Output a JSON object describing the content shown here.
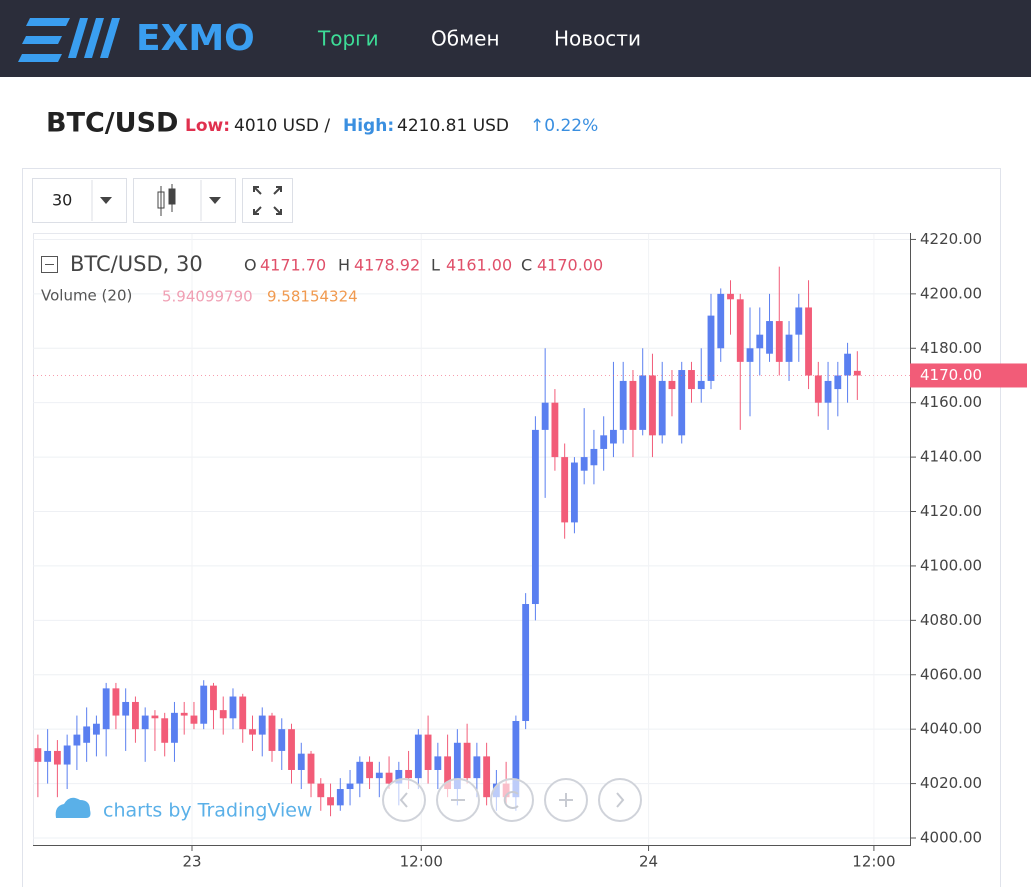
{
  "header": {
    "logo": "EXMO",
    "nav": [
      "Торги",
      "Обмен",
      "Новости"
    ]
  },
  "ticker": {
    "pair": "BTC/USD",
    "low_label": "Low:",
    "low": "4010 USD /",
    "high_label": "High:",
    "high": "4210.81 USD",
    "change": "↑0.22%"
  },
  "toolbar": {
    "interval": "30"
  },
  "chart_data": {
    "type": "candlestick",
    "legend": {
      "symbol": "BTC/USD, 30",
      "o_label": "O",
      "o": "4171.70",
      "h_label": "H",
      "h": "4178.92",
      "l_label": "L",
      "l": "4161.00",
      "c_label": "C",
      "c": "4170.00",
      "volume_label": "Volume (20)",
      "volume_1": "5.94099790",
      "volume_2": "9.58154324"
    },
    "watermark": "charts by TradingView",
    "up_color": "#5a7ff0",
    "down_color": "#f25c78",
    "last_price": {
      "value": 4170,
      "label": "4170.00"
    },
    "xlim": [
      -0.5,
      89.4
    ],
    "ylim": [
      4000,
      4222
    ],
    "xticks": [
      {
        "value": 15.8,
        "label": "23"
      },
      {
        "value": 39.3,
        "label": "12:00"
      },
      {
        "value": 62.6,
        "label": "24"
      },
      {
        "value": 85.7,
        "label": "12:00"
      }
    ],
    "yticks": [
      {
        "value": 4000,
        "label": "4000.00"
      },
      {
        "value": 4020,
        "label": "4020.00"
      },
      {
        "value": 4040,
        "label": "4040.00"
      },
      {
        "value": 4060,
        "label": "4060.00"
      },
      {
        "value": 4080,
        "label": "4080.00"
      },
      {
        "value": 4100,
        "label": "4100.00"
      },
      {
        "value": 4120,
        "label": "4120.00"
      },
      {
        "value": 4140,
        "label": "4140.00"
      },
      {
        "value": 4160,
        "label": "4160.00"
      },
      {
        "value": 4180,
        "label": "4180.00"
      },
      {
        "value": 4200,
        "label": "4200.00"
      },
      {
        "value": 4220,
        "label": "4220.00"
      }
    ],
    "candles": [
      [
        4033,
        4038,
        4015,
        4028
      ],
      [
        4028,
        4040,
        4020,
        4032
      ],
      [
        4032,
        4036,
        4015,
        4027
      ],
      [
        4027,
        4038,
        4018,
        4034
      ],
      [
        4034,
        4045,
        4025,
        4038
      ],
      [
        4035,
        4048,
        4028,
        4041
      ],
      [
        4038,
        4045,
        4030,
        4042
      ],
      [
        4040,
        4057,
        4030,
        4055
      ],
      [
        4055,
        4057,
        4040,
        4045
      ],
      [
        4045,
        4055,
        4032,
        4050
      ],
      [
        4050,
        4052,
        4035,
        4040
      ],
      [
        4040,
        4048,
        4028,
        4045
      ],
      [
        4045,
        4047,
        4032,
        4044
      ],
      [
        4044,
        4046,
        4030,
        4035
      ],
      [
        4035,
        4050,
        4028,
        4046
      ],
      [
        4046,
        4050,
        4038,
        4045
      ],
      [
        4045,
        4050,
        4040,
        4042
      ],
      [
        4042,
        4058,
        4040,
        4056
      ],
      [
        4056,
        4057,
        4040,
        4047
      ],
      [
        4047,
        4052,
        4038,
        4044
      ],
      [
        4044,
        4055,
        4040,
        4052
      ],
      [
        4052,
        4053,
        4035,
        4040
      ],
      [
        4040,
        4045,
        4032,
        4038
      ],
      [
        4038,
        4048,
        4030,
        4045
      ],
      [
        4045,
        4046,
        4028,
        4032
      ],
      [
        4032,
        4044,
        4025,
        4040
      ],
      [
        4040,
        4042,
        4020,
        4025
      ],
      [
        4025,
        4035,
        4018,
        4031
      ],
      [
        4031,
        4032,
        4015,
        4020
      ],
      [
        4020,
        4022,
        4010,
        4015
      ],
      [
        4015,
        4020,
        4008,
        4012
      ],
      [
        4012,
        4022,
        4010,
        4018
      ],
      [
        4018,
        4025,
        4012,
        4020
      ],
      [
        4020,
        4030,
        4015,
        4028
      ],
      [
        4028,
        4030,
        4018,
        4022
      ],
      [
        4022,
        4028,
        4015,
        4024
      ],
      [
        4024,
        4030,
        4018,
        4020
      ],
      [
        4020,
        4028,
        4012,
        4025
      ],
      [
        4025,
        4032,
        4018,
        4022
      ],
      [
        4022,
        4040,
        4018,
        4038
      ],
      [
        4038,
        4045,
        4020,
        4025
      ],
      [
        4025,
        4035,
        4018,
        4030
      ],
      [
        4030,
        4038,
        4015,
        4018
      ],
      [
        4018,
        4040,
        4012,
        4035
      ],
      [
        4035,
        4042,
        4020,
        4022
      ],
      [
        4022,
        4035,
        4015,
        4030
      ],
      [
        4030,
        4035,
        4012,
        4015
      ],
      [
        4015,
        4025,
        4010,
        4020
      ],
      [
        4020,
        4028,
        4012,
        4015
      ],
      [
        4015,
        4045,
        4010,
        4043
      ],
      [
        4043,
        4090,
        4040,
        4086
      ],
      [
        4086,
        4155,
        4080,
        4150
      ],
      [
        4150,
        4180,
        4125,
        4160
      ],
      [
        4160,
        4165,
        4135,
        4140
      ],
      [
        4140,
        4145,
        4110,
        4116
      ],
      [
        4116,
        4140,
        4112,
        4138
      ],
      [
        4135,
        4158,
        4130,
        4140
      ],
      [
        4137,
        4150,
        4130,
        4143
      ],
      [
        4143,
        4155,
        4135,
        4148
      ],
      [
        4145,
        4175,
        4140,
        4150
      ],
      [
        4150,
        4175,
        4145,
        4168
      ],
      [
        4168,
        4172,
        4140,
        4150
      ],
      [
        4150,
        4180,
        4148,
        4170
      ],
      [
        4170,
        4178,
        4140,
        4148
      ],
      [
        4148,
        4175,
        4145,
        4168
      ],
      [
        4168,
        4172,
        4155,
        4165
      ],
      [
        4148,
        4175,
        4145,
        4172
      ],
      [
        4172,
        4175,
        4160,
        4165
      ],
      [
        4165,
        4180,
        4160,
        4168
      ],
      [
        4168,
        4200,
        4165,
        4192
      ],
      [
        4180,
        4202,
        4175,
        4200
      ],
      [
        4200,
        4205,
        4185,
        4198
      ],
      [
        4198,
        4200,
        4150,
        4175
      ],
      [
        4175,
        4195,
        4155,
        4180
      ],
      [
        4180,
        4195,
        4170,
        4185
      ],
      [
        4178,
        4200,
        4175,
        4190
      ],
      [
        4190,
        4210,
        4170,
        4175
      ],
      [
        4175,
        4190,
        4168,
        4185
      ],
      [
        4185,
        4200,
        4175,
        4195
      ],
      [
        4195,
        4205,
        4165,
        4170
      ],
      [
        4170,
        4175,
        4155,
        4160
      ],
      [
        4160,
        4175,
        4150,
        4168
      ],
      [
        4165,
        4175,
        4155,
        4170
      ],
      [
        4170,
        4182,
        4160,
        4178
      ],
      [
        4171.7,
        4178.92,
        4161,
        4170
      ]
    ]
  }
}
